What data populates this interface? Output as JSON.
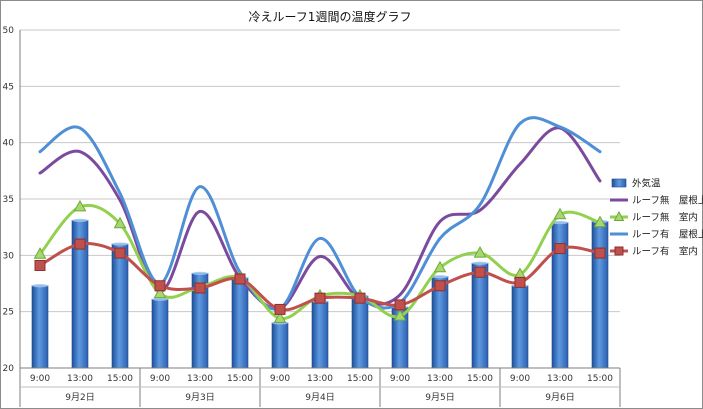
{
  "chart_data": {
    "type": "bar+line",
    "title": "冷えルーフ1週間の温度グラフ",
    "xlabel": "",
    "ylabel": "",
    "ylim": [
      20,
      50
    ],
    "yticks": [
      20,
      25,
      30,
      35,
      40,
      45,
      50
    ],
    "grid": "horizontal",
    "legend_position": "right",
    "groups": [
      {
        "label": "9月2日",
        "times": [
          "9:00",
          "13:00",
          "15:00"
        ]
      },
      {
        "label": "9月3日",
        "times": [
          "9:00",
          "13:00",
          "15:00"
        ]
      },
      {
        "label": "9月4日",
        "times": [
          "9:00",
          "13:00",
          "15:00"
        ]
      },
      {
        "label": "9月5日",
        "times": [
          "9:00",
          "13:00",
          "15:00"
        ]
      },
      {
        "label": "9月6日",
        "times": [
          "9:00",
          "13:00",
          "15:00"
        ]
      }
    ],
    "series": [
      {
        "name": "外気温",
        "kind": "bar",
        "color": "#4a86d1",
        "values": [
          27.3,
          33.1,
          31.0,
          26.1,
          28.4,
          28.0,
          24.0,
          25.9,
          26.4,
          25.4,
          28.1,
          29.3,
          27.3,
          32.9,
          33.0
        ]
      },
      {
        "name": "ルーフ無　屋根上",
        "kind": "line",
        "color": "#7a4a9e",
        "values": [
          37.3,
          39.2,
          34.9,
          26.8,
          33.9,
          28.0,
          25.3,
          29.9,
          26.1,
          26.5,
          33.0,
          34.0,
          38.1,
          41.3,
          36.6
        ]
      },
      {
        "name": "ルーフ無　室内",
        "kind": "line",
        "color": "#92d050",
        "marker": "triangle",
        "values": [
          30.1,
          34.3,
          32.8,
          26.6,
          27.2,
          28.0,
          24.4,
          26.4,
          26.4,
          24.6,
          28.9,
          30.2,
          28.3,
          33.6,
          32.9
        ]
      },
      {
        "name": "ルーフ有　屋根上",
        "kind": "line",
        "color": "#4f8fd6",
        "values": [
          39.2,
          41.3,
          35.5,
          27.5,
          36.1,
          28.5,
          25.3,
          31.5,
          26.3,
          25.8,
          31.5,
          34.5,
          41.7,
          41.4,
          39.2
        ]
      },
      {
        "name": "ルーフ有　室内",
        "kind": "line",
        "color": "#c0504d",
        "marker": "square",
        "values": [
          29.1,
          31.0,
          30.2,
          27.3,
          27.1,
          27.9,
          25.2,
          26.2,
          26.2,
          25.6,
          27.3,
          28.5,
          27.6,
          30.6,
          30.2
        ]
      }
    ]
  }
}
